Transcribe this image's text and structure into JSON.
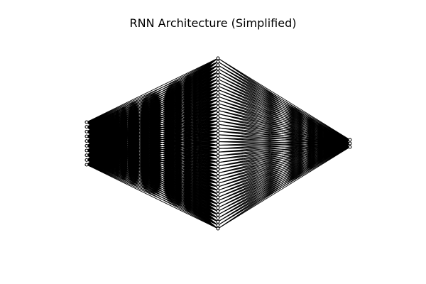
{
  "title": "RNN Architecture (Simplified)",
  "network": {
    "layers": [
      {
        "id": "input",
        "neuron_count": 10
      },
      {
        "id": "hidden",
        "neuron_count": 50
      },
      {
        "id": "output",
        "neuron_count": 3
      }
    ],
    "connectivity": "fully-connected",
    "edge_color": "#000000",
    "node_fill": "#ffffff",
    "node_stroke": "#000000"
  }
}
